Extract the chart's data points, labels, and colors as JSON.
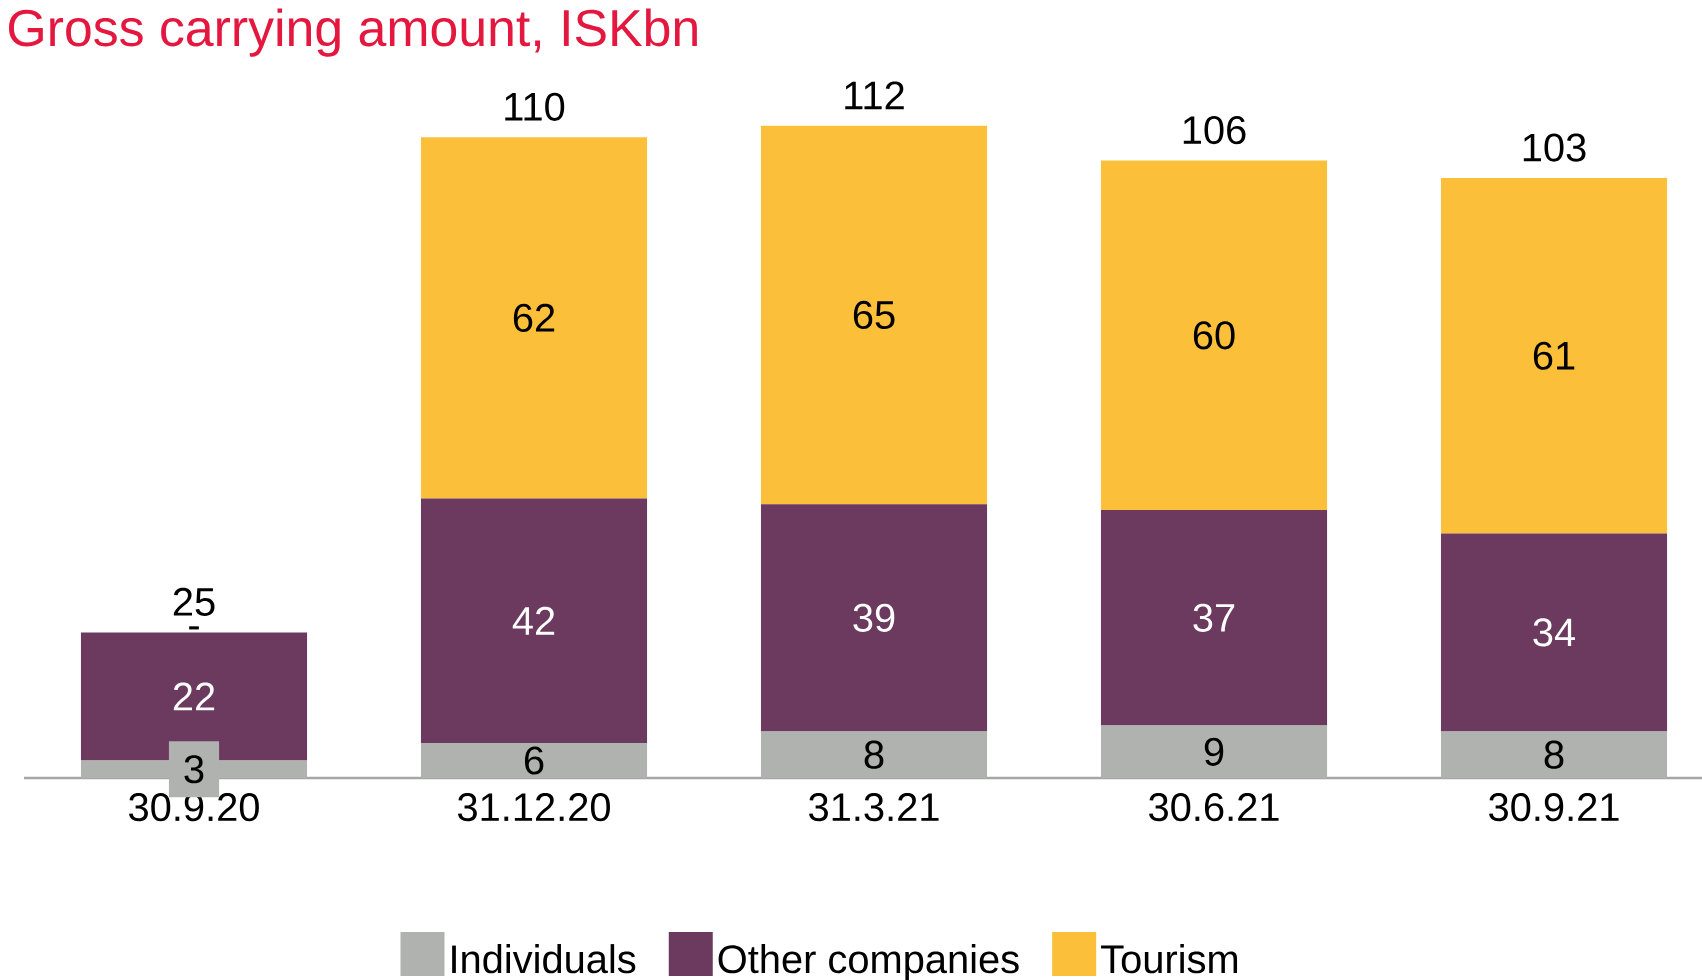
{
  "chart_data": {
    "type": "bar",
    "stacked": true,
    "title": "Gross carrying amount, ISKbn",
    "categories": [
      "30.9.20",
      "31.12.20",
      "31.3.21",
      "30.6.21",
      "30.9.21"
    ],
    "series": [
      {
        "name": "Individuals",
        "color": "#b0b2b0",
        "values": [
          3,
          6,
          8,
          9,
          8
        ],
        "value_labels": [
          "3",
          "6",
          "8",
          "9",
          "8"
        ]
      },
      {
        "name": "Other companies",
        "color": "#6b3a5e",
        "values": [
          22,
          42,
          39,
          37,
          34
        ],
        "value_labels": [
          "22",
          "42",
          "39",
          "37",
          "34"
        ]
      },
      {
        "name": "Tourism",
        "color": "#fbbf3a",
        "values": [
          0,
          62,
          65,
          60,
          61
        ],
        "value_labels": [
          "-",
          "62",
          "65",
          "60",
          "61"
        ]
      }
    ],
    "totals": [
      "25",
      "110",
      "112",
      "106",
      "103"
    ],
    "legend": "bottom"
  }
}
